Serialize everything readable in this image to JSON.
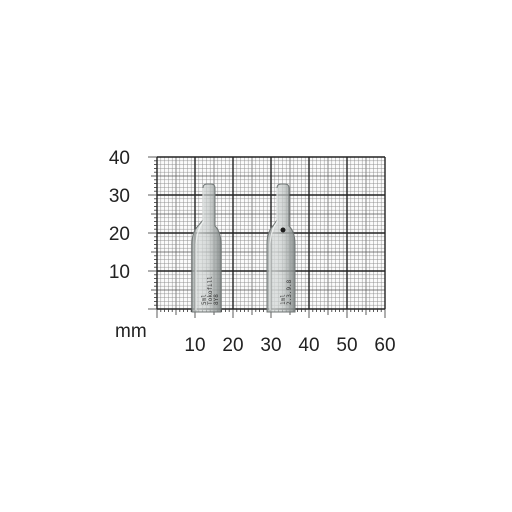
{
  "photo": {
    "unit_label": "mm",
    "x_ticks": [
      "10",
      "20",
      "30",
      "40",
      "50",
      "60"
    ],
    "y_ticks": [
      "10",
      "20",
      "30",
      "40"
    ],
    "ampoule_left_print": [
      "Tokofill",
      "5ml",
      "8Y8"
    ],
    "ampoule_right_print": [
      "1ml",
      "2.3.9.8"
    ],
    "colors": {
      "grid_major": "#222222",
      "grid_minor": "#8a8a8a",
      "glass": "#c7cccb",
      "background": "#ffffff"
    }
  }
}
